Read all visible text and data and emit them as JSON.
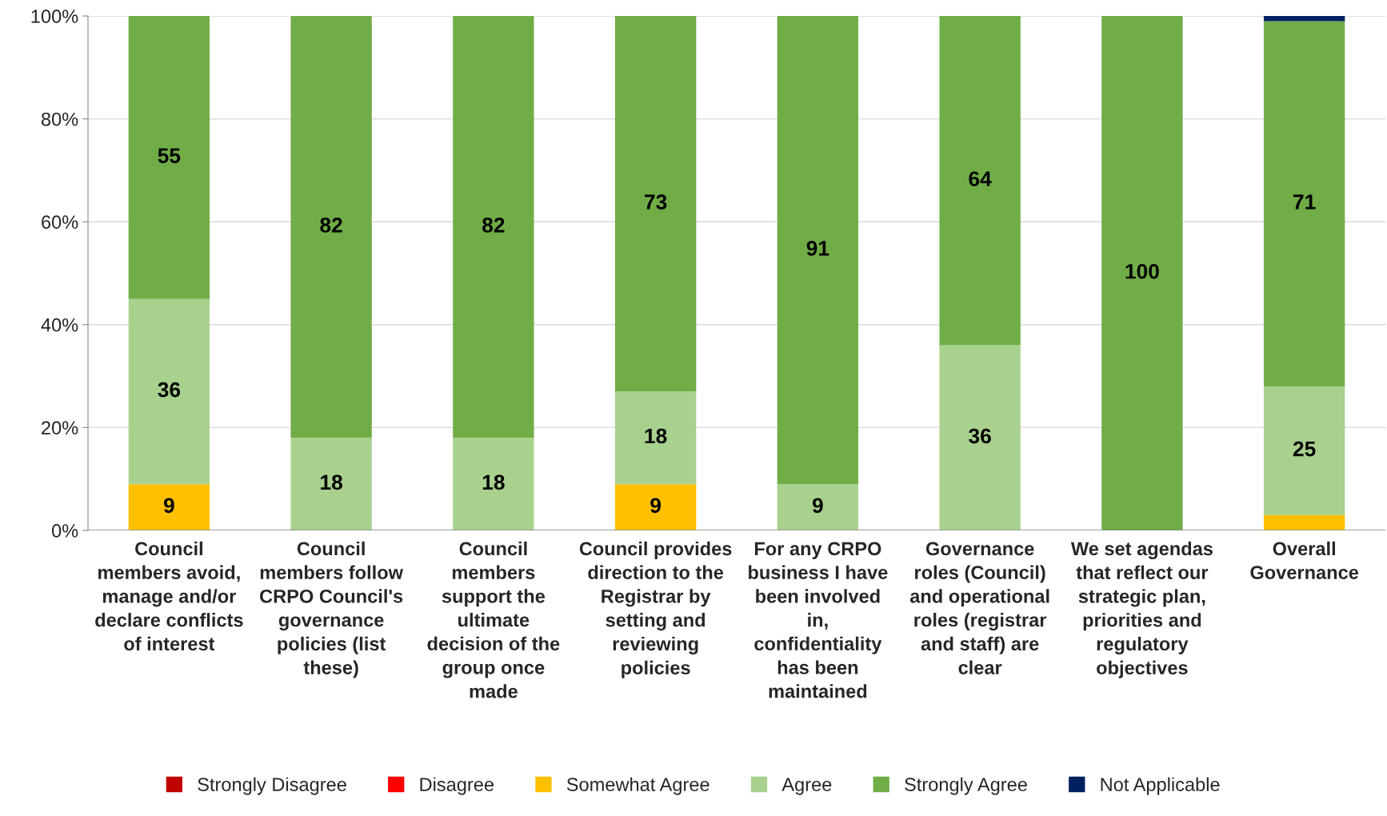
{
  "chart_data": {
    "type": "bar",
    "stacked": true,
    "categories": [
      "Council\nmembers avoid,\nmanage and/or\ndeclare conflicts\nof interest",
      "Council\nmembers follow\nCRPO Council's\ngovernance\npolicies (list\nthese)",
      "Council\nmembers\nsupport the\nultimate\ndecision of the\ngroup once\nmade",
      "Council provides\ndirection to the\nRegistrar by\nsetting and\nreviewing\npolicies",
      "For any CRPO\nbusiness I have\nbeen involved\nin,\nconfidentiality\nhas been\nmaintained",
      "Governance\nroles (Council)\nand operational\nroles (registrar\nand staff) are\nclear",
      "We set agendas\nthat reflect our\nstrategic plan,\npriorities and\nregulatory\nobjectives",
      "Overall\nGovernance"
    ],
    "series": [
      {
        "name": "Strongly Disagree",
        "color": "#c00000",
        "values": [
          0,
          0,
          0,
          0,
          0,
          0,
          0,
          0
        ],
        "value_labels": [
          null,
          null,
          null,
          null,
          null,
          null,
          null,
          null
        ]
      },
      {
        "name": "Disagree",
        "color": "#ff0000",
        "values": [
          0,
          0,
          0,
          0,
          0,
          0,
          0,
          0
        ],
        "value_labels": [
          null,
          null,
          null,
          null,
          null,
          null,
          null,
          null
        ]
      },
      {
        "name": "Somewhat Agree",
        "color": "#ffc000",
        "values": [
          9,
          0,
          0,
          9,
          0,
          0,
          0,
          3
        ],
        "value_labels": [
          "9",
          null,
          null,
          "9",
          null,
          null,
          null,
          null
        ]
      },
      {
        "name": "Agree",
        "color": "#a9d18e",
        "values": [
          36,
          18,
          18,
          18,
          9,
          36,
          0,
          25
        ],
        "value_labels": [
          "36",
          "18",
          "18",
          "18",
          "9",
          "36",
          null,
          "25"
        ]
      },
      {
        "name": "Strongly Agree",
        "color": "#70ad47",
        "values": [
          55,
          82,
          82,
          73,
          91,
          64,
          100,
          71
        ],
        "value_labels": [
          "55",
          "82",
          "82",
          "73",
          "91",
          "64",
          "100",
          "71"
        ]
      },
      {
        "name": "Not Applicable",
        "color": "#002060",
        "values": [
          0,
          0,
          0,
          0,
          0,
          0,
          0,
          1
        ],
        "value_labels": [
          null,
          null,
          null,
          null,
          null,
          null,
          null,
          null
        ]
      }
    ],
    "ylim": [
      0,
      100
    ],
    "yticks": [
      {
        "value": 0,
        "label": "0%"
      },
      {
        "value": 20,
        "label": "20%"
      },
      {
        "value": 40,
        "label": "40%"
      },
      {
        "value": 60,
        "label": "60%"
      },
      {
        "value": 80,
        "label": "80%"
      },
      {
        "value": 100,
        "label": "100%"
      }
    ],
    "grid": "y",
    "legend": "bottom"
  }
}
